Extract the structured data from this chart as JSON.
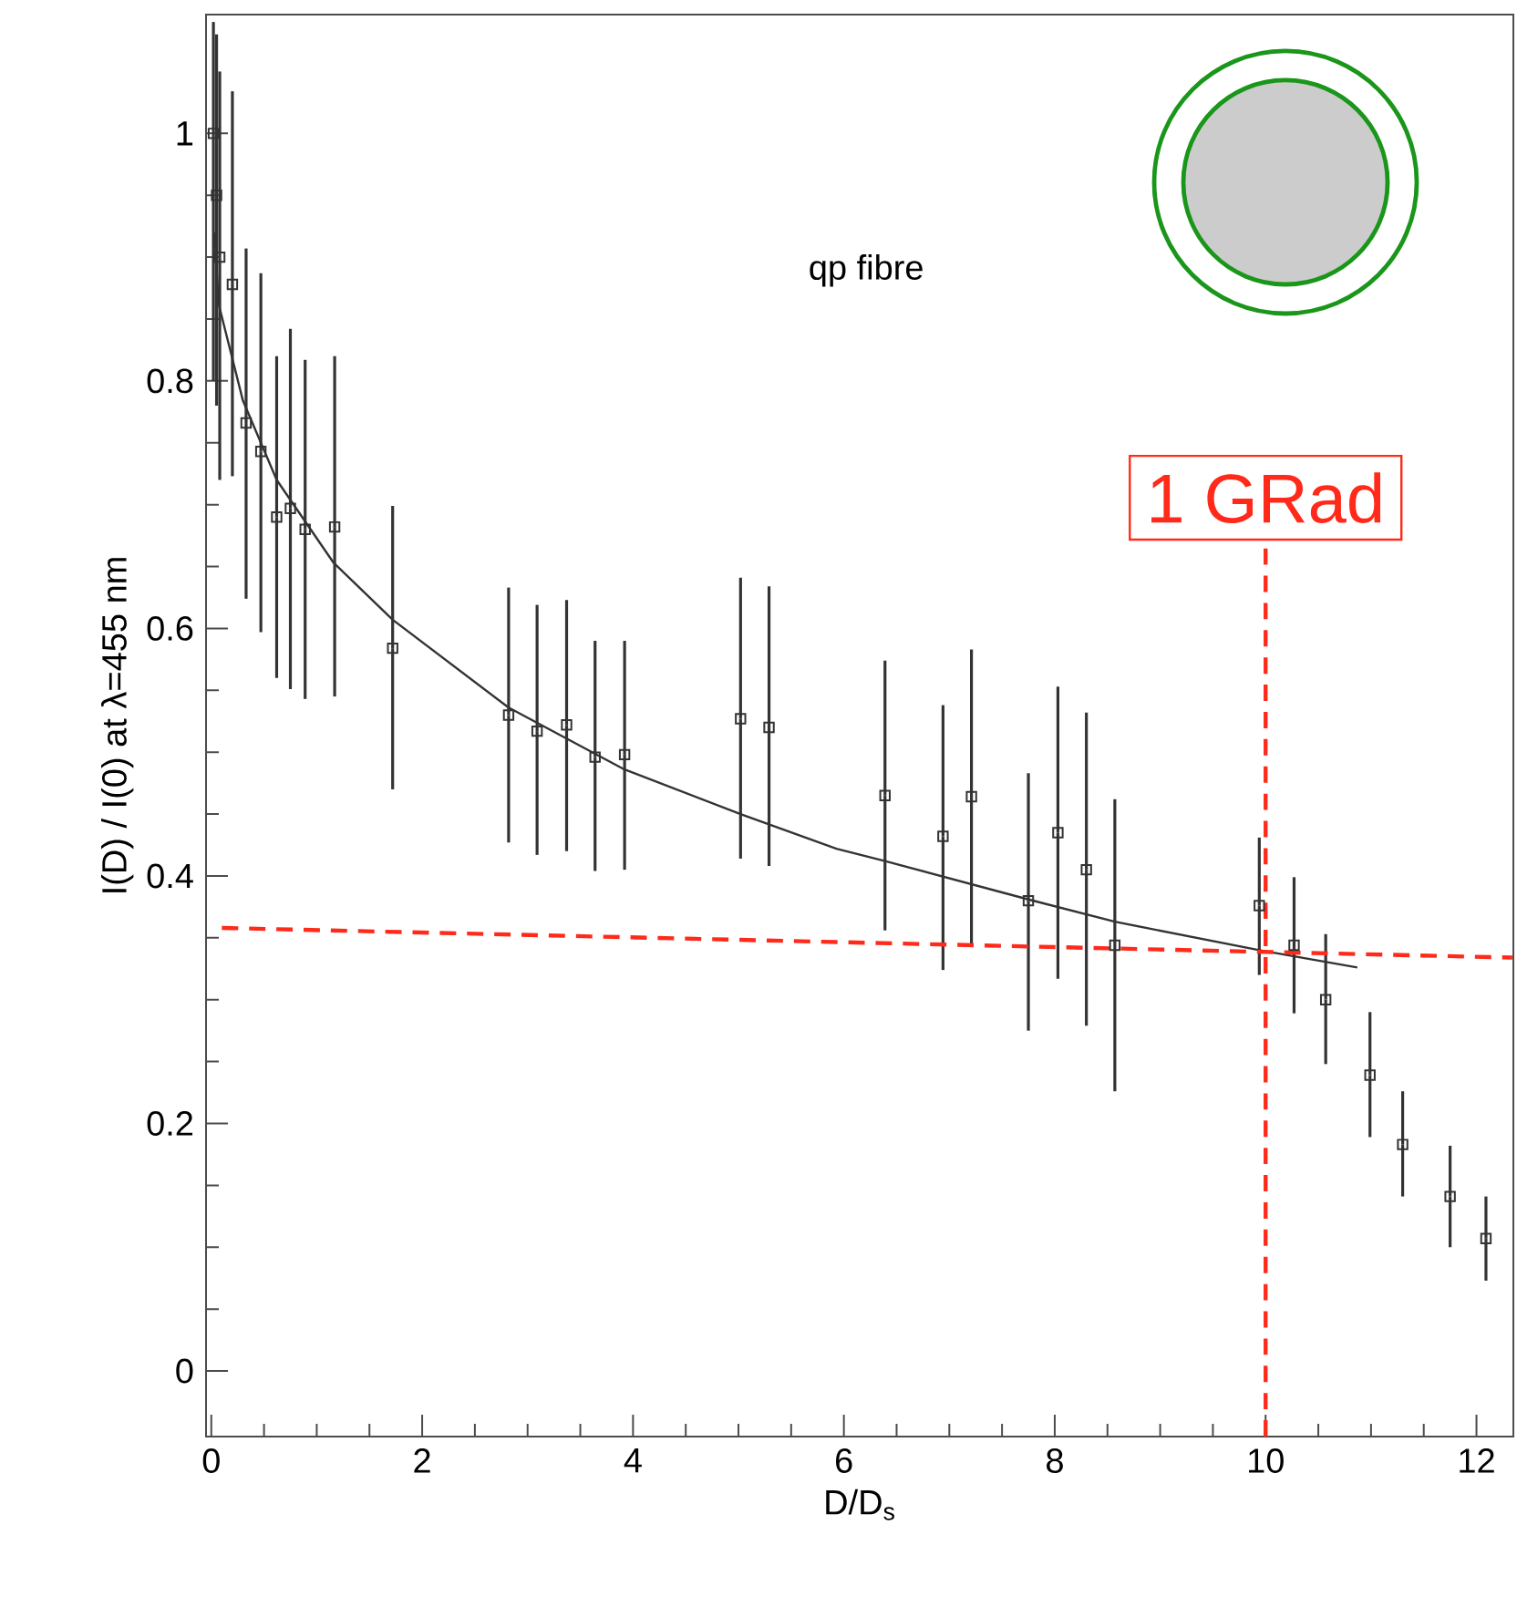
{
  "chart_data": {
    "type": "scatter",
    "xlabel": "D/D$_{s}$",
    "ylabel": "I(D) / I(0) at λ=455 nm",
    "annotations": [
      "qp fibre"
    ],
    "xlim": [
      -0.05,
      12.35
    ],
    "ylim": [
      -0.053,
      1.096
    ],
    "xticks": [
      0,
      2,
      4,
      6,
      8,
      10,
      12
    ],
    "yticks": [
      0,
      0.2,
      0.4,
      0.6,
      0.8,
      1
    ],
    "series": [
      {
        "color": "#333333",
        "marker": "square",
        "x": [
          0.02,
          0.05,
          0.08,
          0.2,
          0.33,
          0.47,
          0.62,
          0.75,
          0.89,
          1.17,
          1.72,
          2.82,
          3.09,
          3.37,
          3.64,
          3.92,
          5.02,
          5.29,
          6.39,
          6.94,
          7.21,
          7.75,
          8.03,
          8.3,
          8.57,
          9.94,
          10.27,
          10.57,
          10.99,
          11.3,
          11.75,
          12.09
        ],
        "values": [
          1.0,
          0.95,
          0.9,
          0.878,
          0.766,
          0.743,
          0.69,
          0.697,
          0.68,
          0.682,
          0.584,
          0.53,
          0.517,
          0.522,
          0.496,
          0.498,
          0.527,
          0.52,
          0.465,
          0.432,
          0.464,
          0.38,
          0.435,
          0.405,
          0.344,
          0.376,
          0.344,
          0.3,
          0.239,
          0.183,
          0.141,
          0.107
        ],
        "errors": [
          [
            0.8,
            1.09
          ],
          [
            0.78,
            1.08
          ],
          [
            0.72,
            1.05
          ],
          [
            0.723,
            1.034
          ],
          [
            0.624,
            0.907
          ],
          [
            0.597,
            0.887
          ],
          [
            0.56,
            0.82
          ],
          [
            0.551,
            0.842
          ],
          [
            0.543,
            0.817
          ],
          [
            0.545,
            0.82
          ],
          [
            0.47,
            0.699
          ],
          [
            0.427,
            0.633
          ],
          [
            0.417,
            0.619
          ],
          [
            0.42,
            0.623
          ],
          [
            0.404,
            0.59
          ],
          [
            0.405,
            0.59
          ],
          [
            0.414,
            0.641
          ],
          [
            0.408,
            0.634
          ],
          [
            0.356,
            0.574
          ],
          [
            0.324,
            0.538
          ],
          [
            0.344,
            0.583
          ],
          [
            0.275,
            0.483
          ],
          [
            0.317,
            0.553
          ],
          [
            0.279,
            0.532
          ],
          [
            0.226,
            0.462
          ],
          [
            0.32,
            0.431
          ],
          [
            0.289,
            0.399
          ],
          [
            0.248,
            0.353
          ],
          [
            0.189,
            0.29
          ],
          [
            0.141,
            0.226
          ],
          [
            0.1,
            0.182
          ],
          [
            0.073,
            0.141
          ]
        ]
      },
      {
        "type": "line",
        "color": "#333333",
        "line_style": "solid",
        "x": [
          0.03,
          0.07,
          0.3,
          0.62,
          1.16,
          1.72,
          2.82,
          3.92,
          5.02,
          5.93,
          6.39,
          7.75,
          8.57,
          9.94,
          10.87
        ],
        "values": [
          0.92,
          0.862,
          0.784,
          0.72,
          0.653,
          0.607,
          0.536,
          0.486,
          0.45,
          0.422,
          0.412,
          0.381,
          0.363,
          0.34,
          0.326
        ]
      },
      {
        "type": "line",
        "color": "#ff2a1a",
        "line_style": "dashed",
        "x": [
          0.1,
          12.34
        ],
        "values": [
          0.358,
          0.334
        ]
      }
    ],
    "ref_lines": [
      {
        "axis": "x",
        "value": 10,
        "label": "1 GRad",
        "color": "#ff2a1a",
        "line_style": "dashed"
      }
    ]
  }
}
